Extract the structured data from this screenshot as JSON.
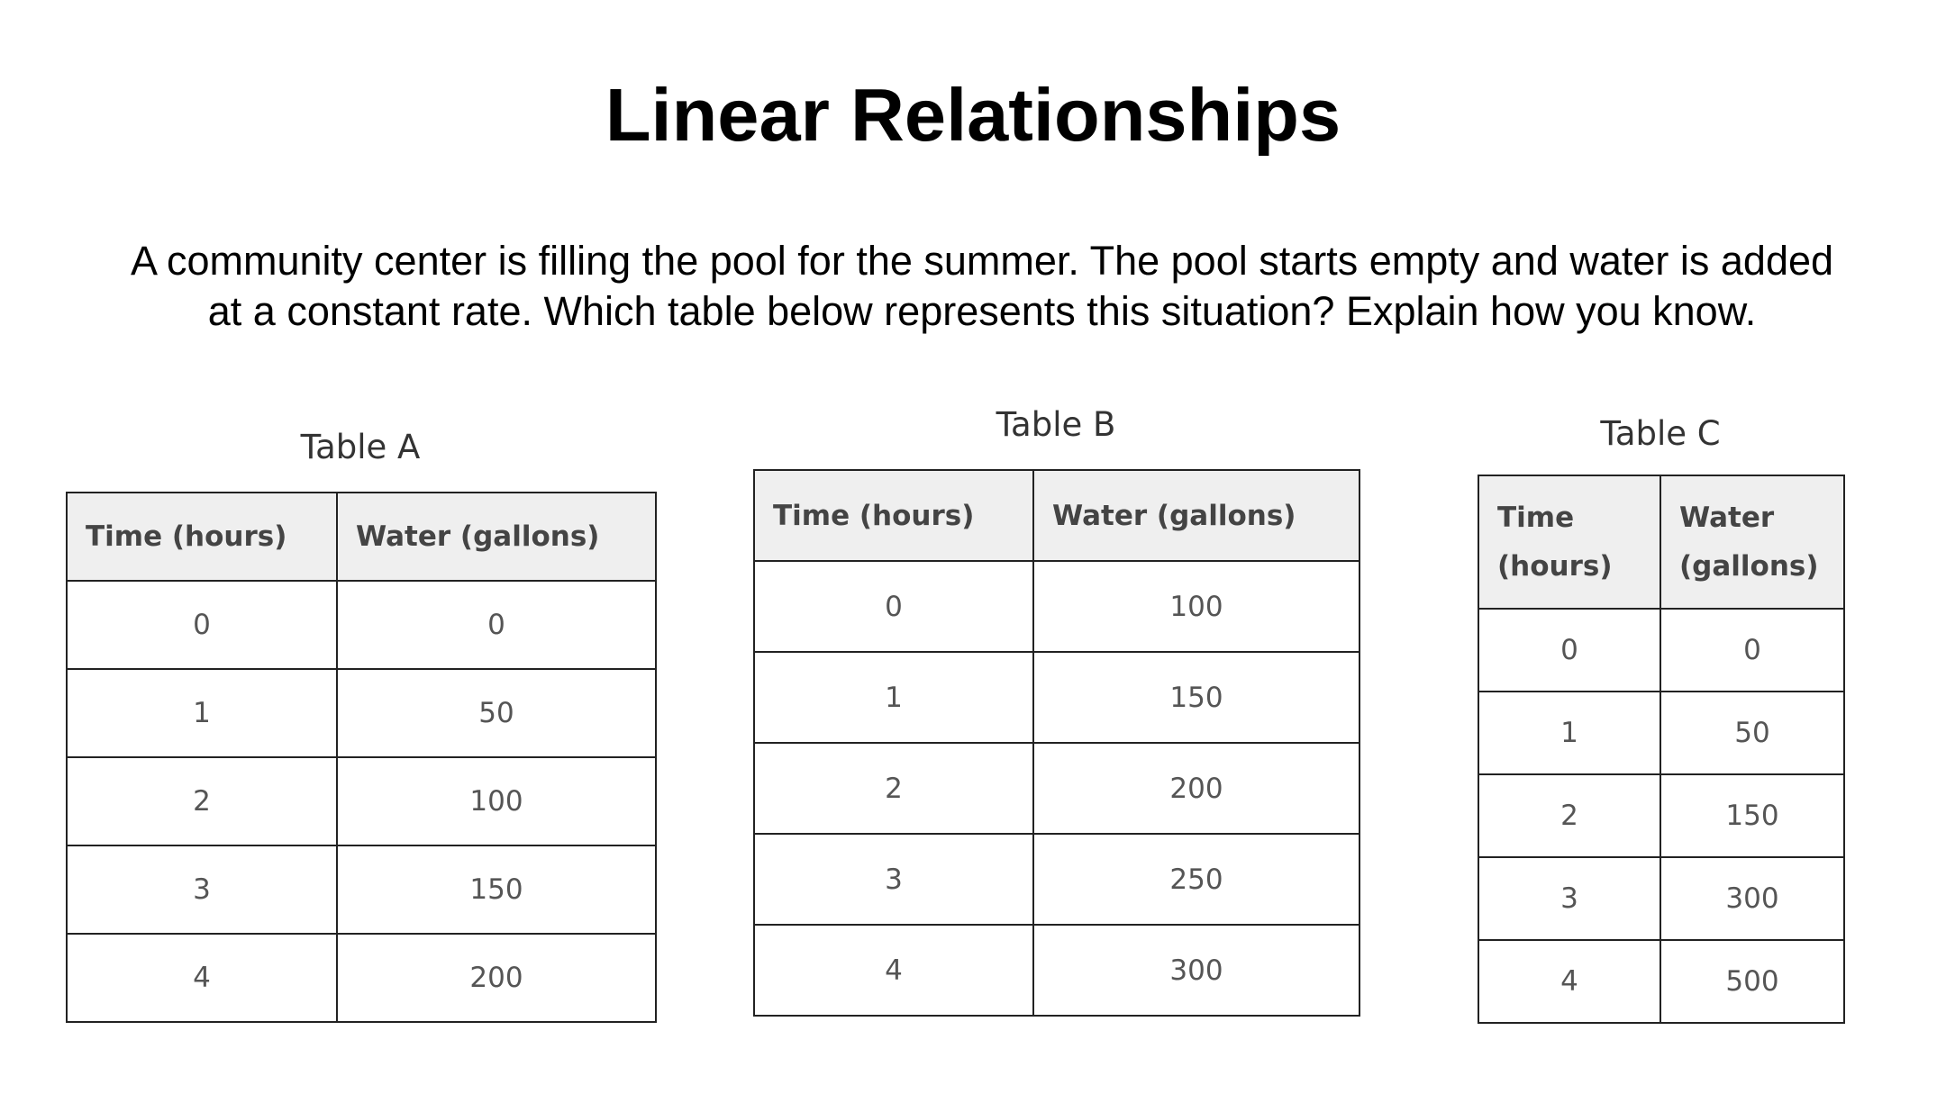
{
  "title": "Linear Relationships",
  "prompt": {
    "line1": "A community center is filling the pool for the summer. The pool starts empty and water is added",
    "line2": "at a constant rate. Which table below represents this situation? Explain how you know."
  },
  "tables": [
    {
      "title": "Table A",
      "headers": [
        "Time (hours)",
        "Water (gallons)"
      ],
      "rows": [
        [
          "0",
          "0"
        ],
        [
          "1",
          "50"
        ],
        [
          "2",
          "100"
        ],
        [
          "3",
          "150"
        ],
        [
          "4",
          "200"
        ]
      ]
    },
    {
      "title": "Table B",
      "headers": [
        "Time (hours)",
        "Water (gallons)"
      ],
      "rows": [
        [
          "0",
          "100"
        ],
        [
          "1",
          "150"
        ],
        [
          "2",
          "200"
        ],
        [
          "3",
          "250"
        ],
        [
          "4",
          "300"
        ]
      ]
    },
    {
      "title": "Table C",
      "headers": [
        "Time (hours)",
        "Water (gallons)"
      ],
      "rows": [
        [
          "0",
          "0"
        ],
        [
          "1",
          "50"
        ],
        [
          "2",
          "150"
        ],
        [
          "3",
          "300"
        ],
        [
          "4",
          "500"
        ]
      ]
    }
  ]
}
